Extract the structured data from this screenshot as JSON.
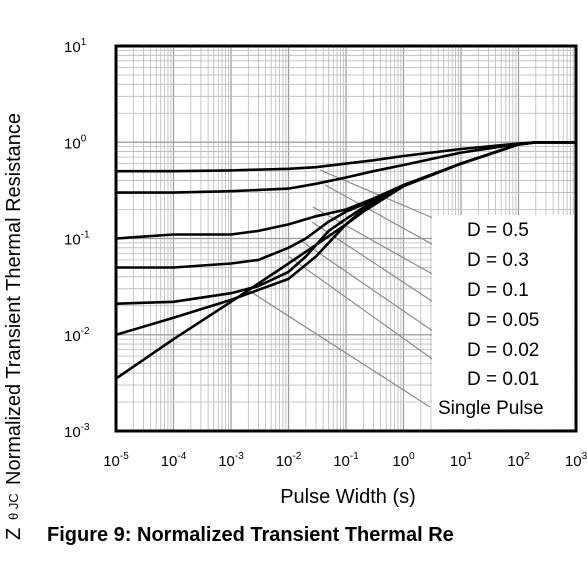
{
  "chart_data": {
    "type": "line",
    "title": "Figure 9: Normalized Transient  Thermal Re",
    "xlabel": "Pulse Width (s)",
    "ylabel_main": "Normalized Transient  Thermal Resistance",
    "ylabel_symbol": "Z",
    "ylabel_subscript": "θ JC",
    "x_scale": "log",
    "y_scale": "log",
    "xlim": [
      1e-05,
      1000
    ],
    "ylim": [
      0.001,
      10
    ],
    "grid": true,
    "legend_placement": "right",
    "x_ticks": [
      {
        "base": "10",
        "exp": "-5"
      },
      {
        "base": "10",
        "exp": "-4"
      },
      {
        "base": "10",
        "exp": "-3"
      },
      {
        "base": "10",
        "exp": "-2"
      },
      {
        "base": "10",
        "exp": "-1"
      },
      {
        "base": "10",
        "exp": "0"
      },
      {
        "base": "10",
        "exp": "1"
      },
      {
        "base": "10",
        "exp": "2"
      },
      {
        "base": "10",
        "exp": "3"
      }
    ],
    "y_ticks": [
      {
        "base": "10",
        "exp": "-3"
      },
      {
        "base": "10",
        "exp": "-2"
      },
      {
        "base": "10",
        "exp": "-1"
      },
      {
        "base": "10",
        "exp": "0"
      },
      {
        "base": "10",
        "exp": "1"
      }
    ],
    "series": [
      {
        "name": "D = 0.5",
        "x": [
          1e-05,
          0.0001,
          0.001,
          0.01,
          0.03,
          0.1,
          0.3,
          1,
          10,
          100,
          200,
          1000
        ],
        "y": [
          0.5,
          0.5,
          0.51,
          0.53,
          0.55,
          0.6,
          0.65,
          0.72,
          0.85,
          0.97,
          1.0,
          1.0
        ]
      },
      {
        "name": "D = 0.3",
        "x": [
          1e-05,
          0.0001,
          0.001,
          0.01,
          0.03,
          0.1,
          0.3,
          1,
          10,
          100,
          200,
          1000
        ],
        "y": [
          0.3,
          0.3,
          0.31,
          0.33,
          0.37,
          0.43,
          0.5,
          0.58,
          0.78,
          0.96,
          1.0,
          1.0
        ]
      },
      {
        "name": "D = 0.1",
        "x": [
          1e-05,
          0.0001,
          0.001,
          0.003,
          0.01,
          0.03,
          0.1,
          0.3,
          1,
          10,
          100,
          200,
          1000
        ],
        "y": [
          0.1,
          0.11,
          0.11,
          0.12,
          0.14,
          0.17,
          0.2,
          0.26,
          0.36,
          0.6,
          0.95,
          1.0,
          1.0
        ]
      },
      {
        "name": "D = 0.05",
        "x": [
          1e-05,
          0.0001,
          0.001,
          0.003,
          0.01,
          0.02,
          0.05,
          0.1,
          0.3,
          1,
          10,
          100,
          200,
          1000
        ],
        "y": [
          0.05,
          0.05,
          0.055,
          0.06,
          0.08,
          0.1,
          0.15,
          0.19,
          0.25,
          0.35,
          0.6,
          0.95,
          1.0,
          1.0
        ]
      },
      {
        "name": "D = 0.02",
        "x": [
          1e-05,
          0.0001,
          0.001,
          0.003,
          0.01,
          0.02,
          0.05,
          0.1,
          0.2,
          1,
          10,
          100,
          200,
          1000
        ],
        "y": [
          0.021,
          0.022,
          0.027,
          0.032,
          0.045,
          0.065,
          0.12,
          0.16,
          0.21,
          0.35,
          0.6,
          0.95,
          1.0,
          1.0
        ]
      },
      {
        "name": "D = 0.01",
        "x": [
          1e-05,
          0.0001,
          0.001,
          0.01,
          0.03,
          0.1,
          0.2,
          1,
          10,
          100,
          200,
          1000
        ],
        "y": [
          0.01,
          0.015,
          0.023,
          0.038,
          0.065,
          0.14,
          0.2,
          0.35,
          0.6,
          0.95,
          1.0,
          1.0
        ]
      },
      {
        "name": "Single Pulse",
        "x": [
          1e-05,
          0.0001,
          0.001,
          0.01,
          0.1,
          0.2,
          1,
          10,
          100,
          200,
          1000
        ],
        "y": [
          0.0035,
          0.009,
          0.022,
          0.055,
          0.14,
          0.19,
          0.35,
          0.6,
          0.95,
          1.0,
          1.0
        ]
      }
    ]
  }
}
